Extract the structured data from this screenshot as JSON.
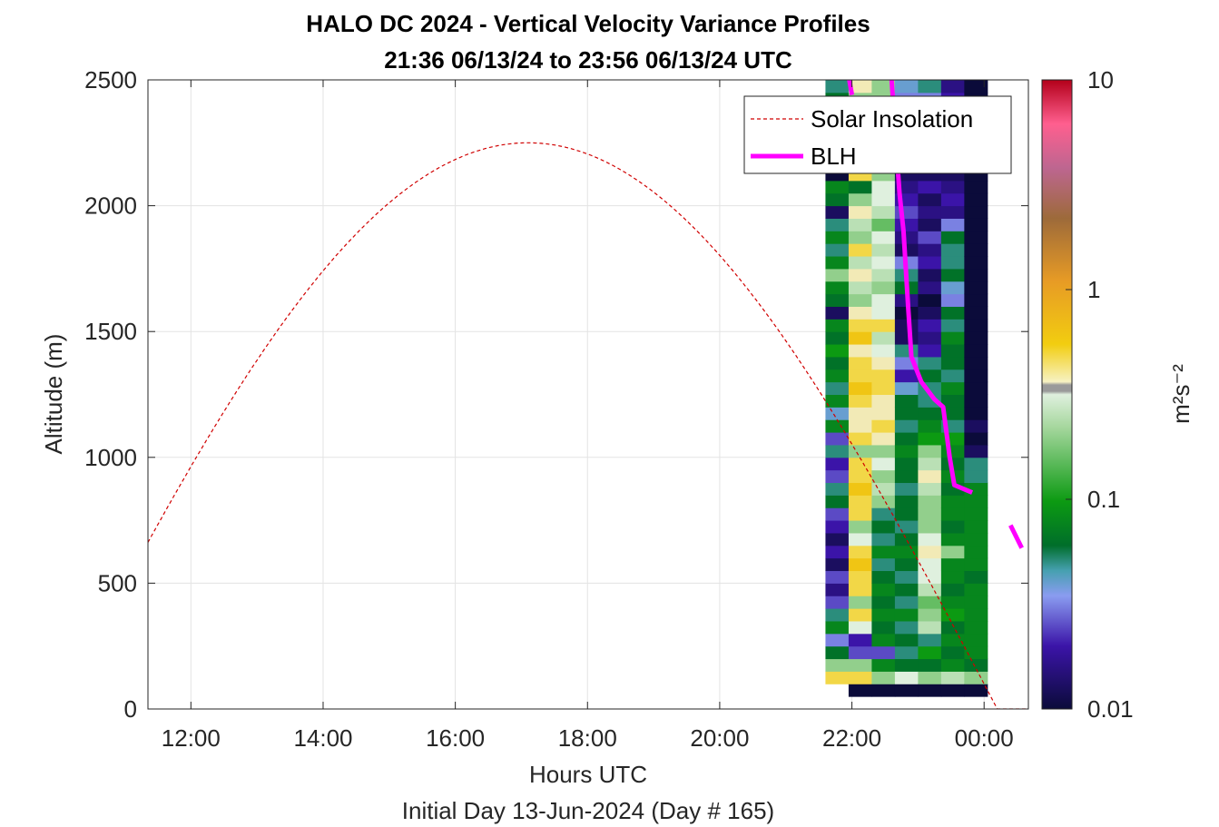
{
  "chart_data": {
    "type": "heatmap",
    "title": "HALO DC 2024 - Vertical Velocity Variance Profiles",
    "subtitle": "21:36 06/13/24 to 23:56 06/13/24  UTC",
    "xlabel": "Hours UTC",
    "xlabel2": "Initial Day 13-Jun-2024 (Day # 165)",
    "ylabel": "Altitude (m)",
    "xlim_hours": [
      11.35,
      24.67
    ],
    "ylim": [
      0,
      2500
    ],
    "x_ticks": [
      12,
      14,
      16,
      18,
      20,
      22,
      24
    ],
    "x_tick_labels": [
      "12:00",
      "14:00",
      "16:00",
      "18:00",
      "20:00",
      "22:00",
      "00:00"
    ],
    "y_ticks": [
      0,
      500,
      1000,
      1500,
      2000,
      2500
    ],
    "y_tick_labels": [
      "0",
      "500",
      "1000",
      "1500",
      "2000",
      "2500"
    ],
    "grid": true,
    "colorbar": {
      "label": "m²s⁻²",
      "scale": "log",
      "range": [
        0.01,
        10
      ],
      "ticks": [
        0.01,
        0.1,
        1,
        10
      ],
      "tick_labels": [
        "0.01",
        "0.1",
        "1",
        "10"
      ]
    },
    "legend": {
      "placement": "top-right",
      "entries": [
        {
          "name": "Solar Insolation",
          "style": "dashed",
          "color": "#d00000"
        },
        {
          "name": "BLH",
          "style": "solid",
          "color": "#ff00ff"
        }
      ]
    },
    "heatmap": {
      "time_start": 21.6,
      "time_step": 0.35,
      "alt_start": 50,
      "alt_step": 50,
      "note_value_codes": "log10 of variance (m2 s-2); null = no data",
      "columns": [
        [
          null,
          -0.3,
          -0.7,
          -1.2,
          -1.5,
          -1.1,
          -1.3,
          -1.6,
          -1.8,
          -1.6,
          -1.9,
          -1.7,
          -1.9,
          -1.7,
          -1.6,
          -1.2,
          -1.3,
          -1.6,
          -1.7,
          -1.3,
          -1.6,
          -1.1,
          -1.4,
          -1.1,
          -1.3,
          -1.1,
          -1.2,
          -1.0,
          -1.2,
          -1.1,
          -1.9,
          -1.2,
          -1.1,
          -0.7,
          -1.1,
          -1.3,
          -1.1,
          -1.3,
          -1.9,
          -1.2,
          -1.1,
          -2.0,
          -1.2,
          -1.1,
          -1.2,
          -1.6,
          -1.1,
          -1.2,
          -1.3,
          -1.0
        ],
        [
          -2.0,
          -0.3,
          -0.7,
          -1.6,
          -1.7,
          -0.5,
          -0.3,
          -0.7,
          -0.3,
          -0.3,
          -0.2,
          -0.3,
          -0.5,
          -0.7,
          -0.3,
          -0.3,
          -0.2,
          -0.3,
          -0.3,
          -0.7,
          -0.3,
          -0.4,
          -0.4,
          -0.3,
          -0.2,
          -0.3,
          -0.3,
          -0.4,
          -0.2,
          -0.3,
          -0.4,
          -0.7,
          -0.6,
          -0.4,
          -0.6,
          -0.3,
          -0.7,
          -0.6,
          -0.4,
          -0.7,
          -1.2,
          -0.3,
          -0.4,
          -0.6,
          -0.5,
          -0.7,
          -0.6,
          -0.7,
          -0.4,
          -0.3
        ],
        [
          -2.0,
          -0.7,
          -1.1,
          -1.6,
          -1.1,
          -1.2,
          -1.1,
          -1.2,
          -1.1,
          -1.2,
          -1.3,
          -1.1,
          -1.3,
          -1.2,
          -1.3,
          -0.7,
          -0.6,
          -0.7,
          -0.5,
          -0.7,
          -0.4,
          -0.3,
          -0.4,
          -0.4,
          -0.3,
          -0.3,
          -0.4,
          -0.5,
          -0.6,
          -0.3,
          -0.5,
          -0.5,
          -0.7,
          -0.6,
          -0.5,
          -0.6,
          -0.5,
          -0.8,
          -0.6,
          -0.5,
          -0.5,
          -0.7,
          -0.7,
          -1.7,
          -0.7,
          -0.6,
          -0.6,
          -0.7,
          -0.7,
          -1.1
        ],
        [
          -2.0,
          -0.5,
          -1.2,
          -1.3,
          -1.2,
          -1.3,
          -1.1,
          -1.3,
          -1.2,
          -1.3,
          -1.2,
          -1.1,
          -1.2,
          -1.3,
          -1.2,
          -1.2,
          -1.3,
          -1.2,
          -1.2,
          -1.1,
          -1.2,
          -1.3,
          -1.2,
          -1.2,
          -1.4,
          -1.7,
          -1.5,
          -1.3,
          -1.9,
          -1.9,
          -2.0,
          -1.8,
          -1.2,
          -1.3,
          -1.5,
          -1.9,
          -1.8,
          -1.7,
          -1.6,
          -1.7,
          -1.8,
          -1.9,
          -1.7,
          -1.6,
          -1.9,
          -1.8,
          -1.6,
          -1.5,
          -1.4,
          -1.4
        ],
        [
          -2.0,
          -0.7,
          -1.2,
          -1.0,
          -1.3,
          -0.6,
          -0.7,
          -0.8,
          -0.6,
          -0.5,
          -0.5,
          -0.4,
          -0.5,
          -0.7,
          -0.7,
          -0.7,
          -0.6,
          -0.4,
          -0.6,
          -0.7,
          -1.0,
          -1.1,
          -1.2,
          -1.3,
          -1.3,
          -1.2,
          -1.3,
          -1.7,
          -1.8,
          -1.7,
          -1.9,
          -2.0,
          -1.8,
          -1.9,
          -1.7,
          -1.8,
          -1.6,
          -1.9,
          -1.8,
          -1.9,
          -1.7,
          -1.9,
          -1.6,
          -1.7,
          -1.5,
          -1.3,
          -1.7,
          -1.5,
          -1.3,
          -1.4
        ],
        [
          -2.0,
          -0.6,
          -1.1,
          -1.2,
          -1.1,
          -1.2,
          -1.0,
          -1.1,
          -1.2,
          -1.1,
          -1.1,
          -0.7,
          -1.1,
          -1.2,
          -1.1,
          -1.1,
          -1.2,
          -1.1,
          -1.2,
          -1.1,
          -1.0,
          -1.3,
          -1.2,
          -1.2,
          -1.1,
          -1.3,
          -1.2,
          -1.2,
          -1.1,
          -1.3,
          -1.2,
          -1.5,
          -1.4,
          -1.2,
          -1.3,
          -1.3,
          -1.2,
          -1.5,
          -1.8,
          -1.7,
          -1.8,
          -1.9,
          -1.8,
          -1.8,
          -2.0,
          -1.9,
          -1.8,
          -1.7,
          -1.8,
          -1.6
        ],
        [
          -2.0,
          -0.7,
          -1.2,
          -1.1,
          -1.1,
          -1.1,
          -1.1,
          -1.1,
          -1.1,
          -1.2,
          -1.1,
          -1.1,
          -1.1,
          -1.1,
          -1.1,
          -1.1,
          -1.1,
          -1.3,
          -1.3,
          -1.9,
          -2.0,
          -1.9,
          -2.0,
          -2.0,
          -2.0,
          -2.0,
          -2.0,
          -2.0,
          -2.0,
          -2.0,
          -2.0,
          -2.0,
          -2.0,
          -2.0,
          -2.0,
          -2.0,
          -2.0,
          -2.0,
          -2.0,
          -2.0,
          -2.0,
          -2.0,
          -2.0,
          -2.0,
          -2.0,
          -2.0,
          -2.0,
          -2.0,
          -2.0,
          -2.0
        ]
      ]
    },
    "blh": {
      "segments": [
        [
          [
            21.96,
            2500
          ],
          [
            22.0,
            2440
          ]
        ],
        [
          [
            22.6,
            2500
          ],
          [
            22.72,
            2050
          ],
          [
            22.78,
            1900
          ],
          [
            22.85,
            1600
          ],
          [
            22.9,
            1400
          ],
          [
            23.05,
            1300
          ],
          [
            23.25,
            1230
          ],
          [
            23.38,
            1200
          ],
          [
            23.48,
            1000
          ],
          [
            23.55,
            890
          ],
          [
            23.82,
            860
          ]
        ],
        [
          [
            24.4,
            730
          ],
          [
            24.57,
            640
          ]
        ]
      ]
    },
    "solar": {
      "peak_hour": 17.1,
      "half_width_hours": 7.1,
      "peak_value": 2250
    }
  }
}
